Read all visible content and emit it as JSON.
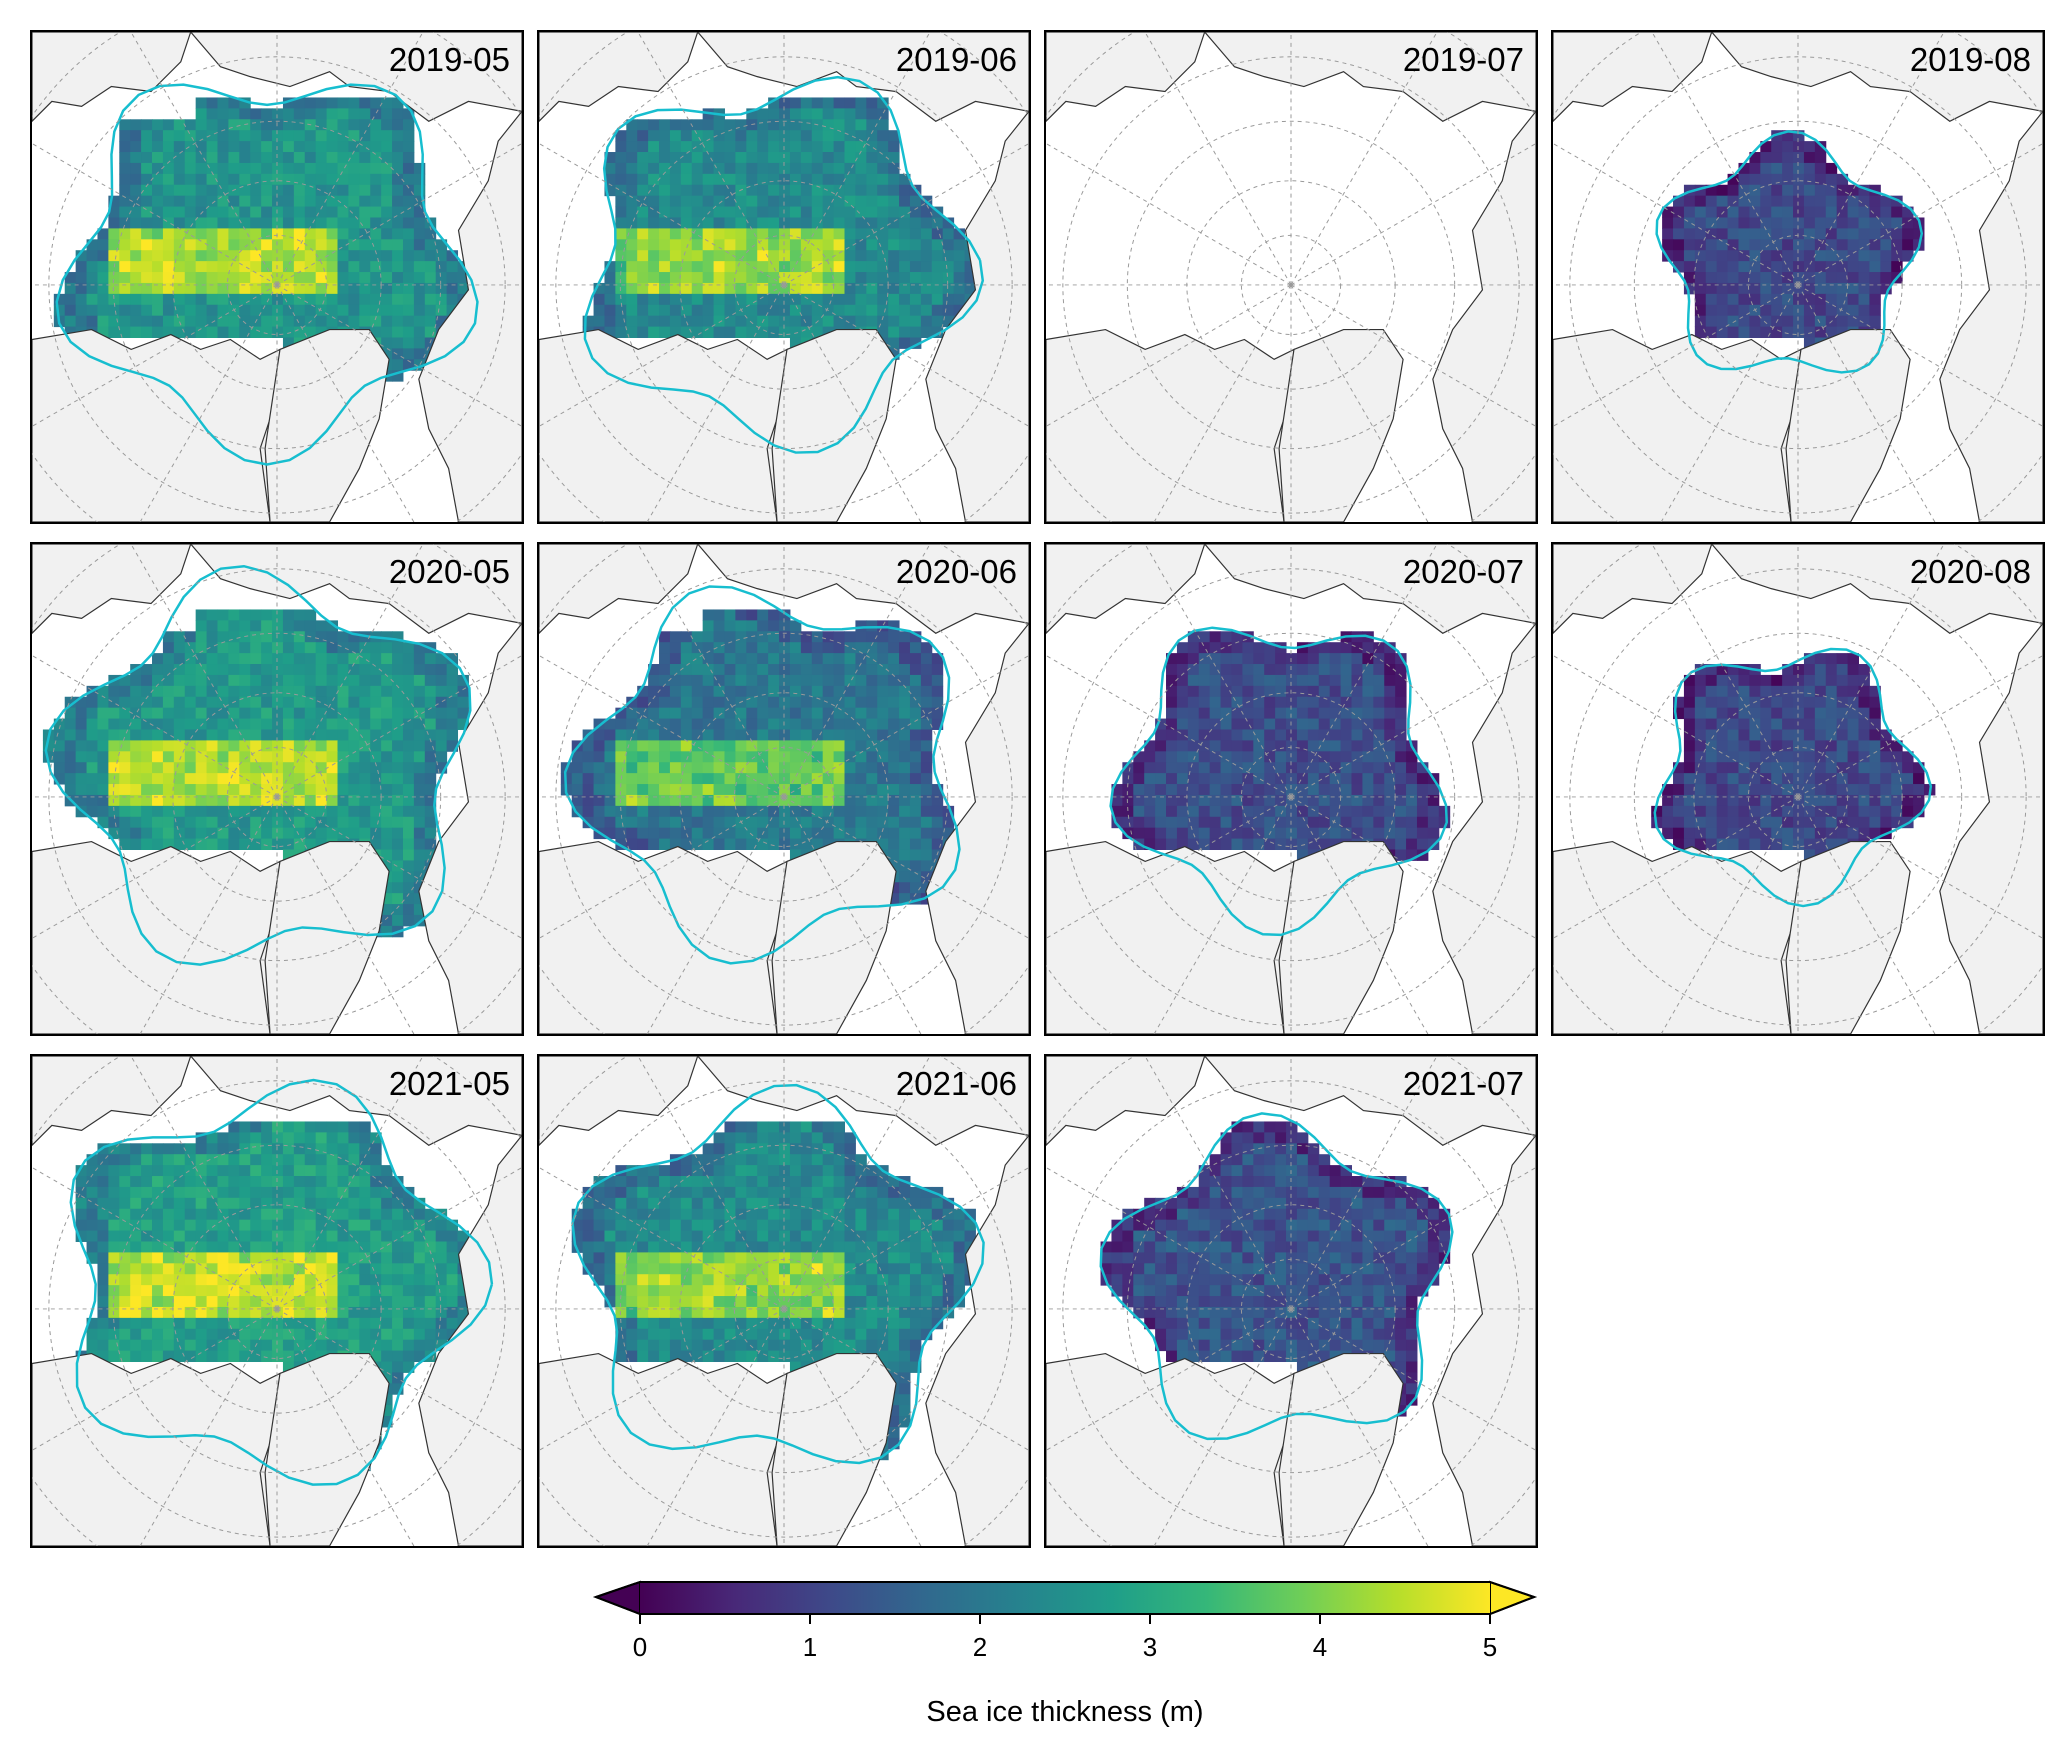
{
  "panels": [
    {
      "label": "2019-05",
      "coverage": 0.82,
      "mean_thickness_m": 2.6,
      "thick_band": true
    },
    {
      "label": "2019-06",
      "coverage": 0.78,
      "mean_thickness_m": 2.4,
      "thick_band": true
    },
    {
      "label": "2019-07",
      "coverage": 0.0,
      "mean_thickness_m": 0,
      "thick_band": false
    },
    {
      "label": "2019-08",
      "coverage": 0.45,
      "mean_thickness_m": 1.1,
      "thick_band": false
    },
    {
      "label": "2020-05",
      "coverage": 0.84,
      "mean_thickness_m": 2.7,
      "thick_band": true
    },
    {
      "label": "2020-06",
      "coverage": 0.78,
      "mean_thickness_m": 2.0,
      "thick_band": true
    },
    {
      "label": "2020-07",
      "coverage": 0.62,
      "mean_thickness_m": 1.2,
      "thick_band": false
    },
    {
      "label": "2020-08",
      "coverage": 0.48,
      "mean_thickness_m": 1.1,
      "thick_band": false
    },
    {
      "label": "2021-05",
      "coverage": 0.85,
      "mean_thickness_m": 2.8,
      "thick_band": true
    },
    {
      "label": "2021-06",
      "coverage": 0.8,
      "mean_thickness_m": 2.4,
      "thick_band": true
    },
    {
      "label": "2021-07",
      "coverage": 0.66,
      "mean_thickness_m": 1.3,
      "thick_band": false
    }
  ],
  "colorbar": {
    "title": "Sea ice thickness (m)",
    "min": 0,
    "max": 5,
    "ticks": [
      "0",
      "1",
      "2",
      "3",
      "4",
      "5"
    ],
    "extend": "both",
    "colormap": "viridis",
    "stops": [
      "#440154",
      "#482878",
      "#3e4989",
      "#31688e",
      "#26828e",
      "#1f9e89",
      "#35b779",
      "#6ece58",
      "#b5de2b",
      "#fde725"
    ]
  },
  "colors": {
    "land": "#f1f1f1",
    "ocean": "#ffffff",
    "ice_edge": "#17becf",
    "coastline": "#333333",
    "graticule": "#9a9a9a"
  }
}
